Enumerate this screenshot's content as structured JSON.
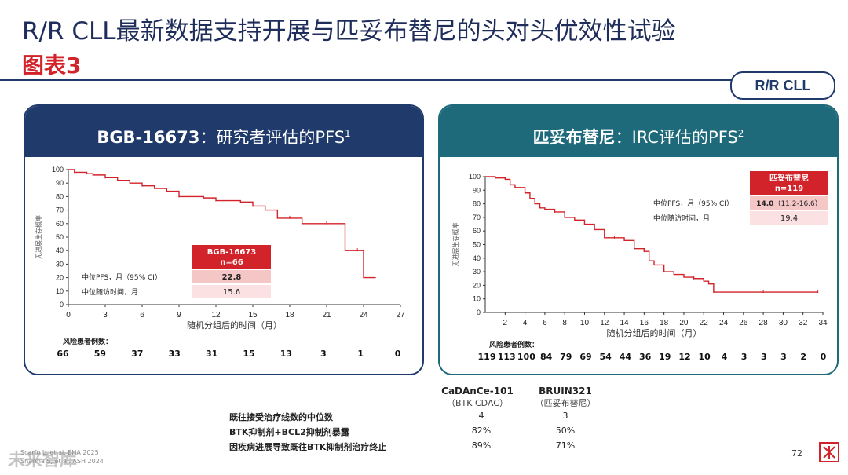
{
  "slide": {
    "title": "R/R CLL最新数据支持开展与匹妥布替尼的头对头优效性试验",
    "subtitle": "图表3",
    "tag": "R/R CLL",
    "page_number": "72",
    "watermark": "未来智库",
    "references": [
      "Scarfo L, et al. EHA 2025",
      "Sharma S, et al. ASH 2024"
    ]
  },
  "panels": [
    {
      "header_bold": "BGB-16673",
      "header_rest": "：研究者评估的PFS",
      "header_sup": "1"
    },
    {
      "header_bold": "匹妥布替尼",
      "header_rest": "：IRC评估的PFS",
      "header_sup": "2"
    }
  ],
  "chart_data": [
    {
      "type": "line",
      "xlabel": "随机分组后的时间（月）",
      "ylabel": "无进展生存概率",
      "xticks": [
        0,
        3,
        6,
        9,
        12,
        15,
        18,
        21,
        24,
        27
      ],
      "yticks": [
        0,
        10,
        20,
        30,
        40,
        50,
        60,
        70,
        80,
        90,
        100
      ],
      "xlim": [
        0,
        27
      ],
      "ylim": [
        0,
        100
      ],
      "line_color": "#d2232a",
      "series": [
        {
          "x": [
            0,
            0.5,
            1.5,
            2,
            3,
            4,
            5,
            6,
            7,
            8,
            9,
            10,
            11,
            12,
            13,
            14,
            15,
            16,
            17,
            18,
            19,
            20,
            21,
            22,
            22.5,
            23.5,
            24,
            25
          ],
          "y": [
            100,
            98,
            97,
            96,
            94,
            92,
            90,
            88,
            86,
            84,
            80,
            80,
            79,
            77,
            77,
            76,
            73,
            70,
            64,
            64,
            60,
            60,
            60,
            60,
            40,
            40,
            20,
            20
          ]
        }
      ],
      "table": {
        "header": [
          "BGB-16673",
          "n=66"
        ],
        "rows": [
          {
            "label": "中位PFS，月（95% CI）",
            "value": "22.8"
          },
          {
            "label": "中位随访时间，月",
            "value": "15.6"
          }
        ]
      },
      "risk_label": "风险患者例数：",
      "risk_numbers": [
        "66",
        "59",
        "37",
        "33",
        "31",
        "15",
        "13",
        "3",
        "1",
        "0"
      ]
    },
    {
      "type": "line",
      "xlabel": "随机分组后的时间（月）",
      "ylabel": "无进展生存概率",
      "xticks": [
        2,
        4,
        6,
        8,
        10,
        12,
        14,
        16,
        18,
        20,
        22,
        24,
        26,
        28,
        30,
        32,
        34
      ],
      "yticks": [
        0,
        10,
        20,
        30,
        40,
        50,
        60,
        70,
        80,
        90,
        100
      ],
      "xlim": [
        0,
        34
      ],
      "ylim": [
        0,
        100
      ],
      "line_color": "#d2232a",
      "series": [
        {
          "x": [
            0,
            1,
            2,
            2.5,
            3,
            4,
            4.5,
            5,
            5.5,
            6,
            7,
            8,
            9,
            10,
            11,
            12,
            13,
            14,
            15,
            16,
            16.5,
            17,
            18,
            19,
            20,
            21,
            22,
            22.5,
            23,
            24,
            26,
            28,
            30,
            32,
            33.5
          ],
          "y": [
            100,
            99,
            98,
            94,
            92,
            88,
            84,
            80,
            77,
            76,
            74,
            70,
            68,
            65,
            61,
            55,
            55,
            53,
            47,
            45,
            38,
            35,
            30,
            28,
            26,
            25,
            23,
            21,
            15,
            15,
            15,
            15,
            15,
            15,
            15
          ]
        }
      ],
      "table": {
        "header": [
          "匹妥布替尼",
          "n=119"
        ],
        "rows": [
          {
            "label": "中位PFS，月（95% CI）",
            "value_bold": "14.0",
            "value_rest": "（11.2-16.6）"
          },
          {
            "label": "中位随访时间，月",
            "value": "19.4"
          }
        ]
      },
      "risk_label": "风险患者例数：",
      "risk_numbers": [
        "119",
        "113",
        "100",
        "84",
        "79",
        "69",
        "54",
        "44",
        "36",
        "19",
        "12",
        "10",
        "4",
        "3",
        "3",
        "3",
        "2",
        "0"
      ]
    }
  ],
  "comparison": {
    "columns": [
      {
        "name": "CaDAnCe-101",
        "sub": "（BTK CDAC）"
      },
      {
        "name": "BRUIN321",
        "sub": "（匹妥布替尼）"
      }
    ],
    "rows": [
      {
        "label": "既往接受治疗线数的中位数",
        "values": [
          "4",
          "3"
        ]
      },
      {
        "label": "BTK抑制剂+BCL2抑制剂暴露",
        "values": [
          "82%",
          "50%"
        ]
      },
      {
        "label": "因疾病进展导致既往BTK抑制剂治疗终止",
        "values": [
          "89%",
          "71%"
        ]
      }
    ]
  }
}
